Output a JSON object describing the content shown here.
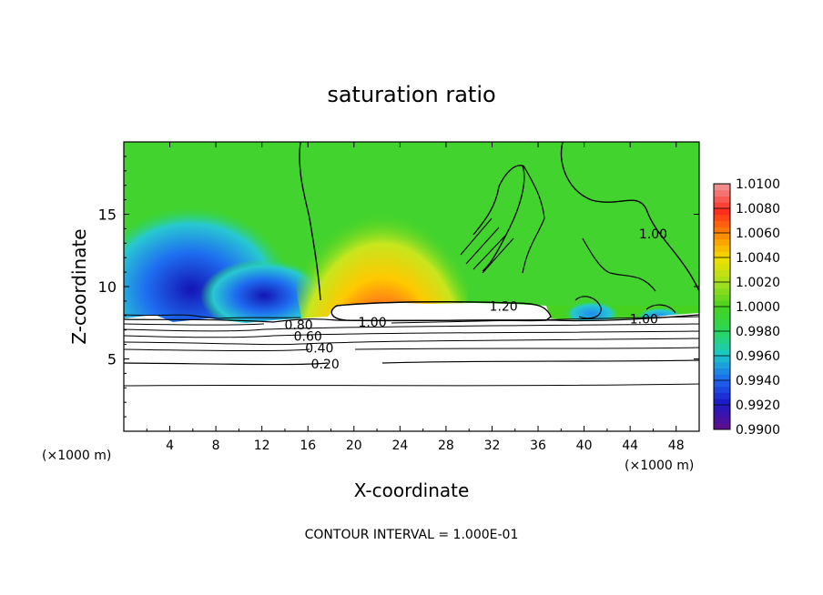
{
  "chart_data": {
    "type": "heatmap",
    "title": "saturation ratio",
    "xlabel": "X-coordinate",
    "ylabel": "Z-coordinate",
    "x_unit_left": "(×1000 m)",
    "x_unit_right": "(×1000 m)",
    "xlim": [
      0,
      50
    ],
    "ylim": [
      0,
      20
    ],
    "xticks": [
      4,
      8,
      12,
      16,
      20,
      24,
      28,
      32,
      36,
      40,
      44,
      48
    ],
    "xtick_labels": [
      "4",
      "8",
      "12",
      "16",
      "20",
      "24",
      "28",
      "32",
      "36",
      "40",
      "44",
      "48"
    ],
    "yticks": [
      5,
      10,
      15
    ],
    "ytick_labels": [
      "5",
      "10",
      "15"
    ],
    "colorbar": {
      "range": [
        0.99,
        1.01
      ],
      "ticks": [
        1.01,
        1.008,
        1.006,
        1.004,
        1.002,
        1.0,
        0.998,
        0.996,
        0.994,
        0.992,
        0.99
      ],
      "tick_labels": [
        "1.0100",
        "1.0080",
        "1.0060",
        "1.0040",
        "1.0020",
        "1.0000",
        "0.9980",
        "0.9960",
        "0.9940",
        "0.9920",
        "0.9900"
      ],
      "colors": [
        "#5b0f8f",
        "#1a1ac8",
        "#1e6cf0",
        "#19c8c8",
        "#2ad85a",
        "#46d21e",
        "#a6e01e",
        "#f0e000",
        "#ff8c00",
        "#ff2a1e",
        "#f08c8c"
      ]
    },
    "contour_labels": [
      {
        "text": "0.20",
        "x": 17.5,
        "y": 4.6
      },
      {
        "text": "0.40",
        "x": 17.0,
        "y": 5.7
      },
      {
        "text": "0.60",
        "x": 16.0,
        "y": 6.5
      },
      {
        "text": "0.80",
        "x": 15.2,
        "y": 7.3
      },
      {
        "text": "1.00",
        "x": 21.6,
        "y": 7.5
      },
      {
        "text": "1.20",
        "x": 33.0,
        "y": 8.6
      },
      {
        "text": "1.00",
        "x": 45.2,
        "y": 7.7
      },
      {
        "text": "1.00",
        "x": 46.0,
        "y": 13.6
      }
    ],
    "contour_interval": "CONTOUR INTERVAL = 1.000E-01"
  }
}
